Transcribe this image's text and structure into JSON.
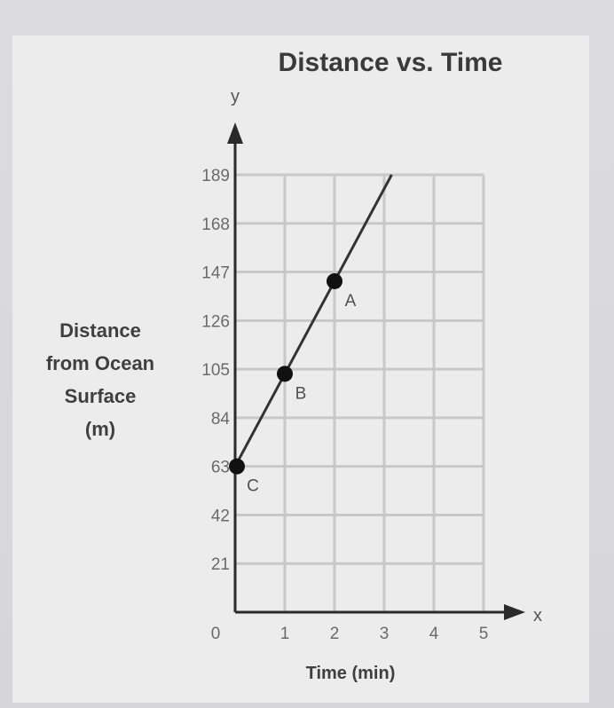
{
  "chart_data": {
    "type": "line",
    "title": "Distance vs. Time",
    "xlabel": "Time (min)",
    "ylabel_lines": [
      "Distance",
      "from Ocean",
      "Surface",
      "(m)"
    ],
    "x_axis_letter": "x",
    "y_axis_letter": "y",
    "x_ticks": [
      0,
      1,
      2,
      3,
      4,
      5
    ],
    "y_ticks": [
      21,
      42,
      63,
      84,
      105,
      126,
      147,
      168,
      189
    ],
    "origin_label": "0",
    "xlim": [
      0,
      5
    ],
    "ylim": [
      0,
      189
    ],
    "grid": true,
    "series": [
      {
        "x": [
          0,
          3.15
        ],
        "y": [
          63,
          189
        ]
      }
    ],
    "points": [
      {
        "label": "A",
        "x": 2,
        "y": 143
      },
      {
        "label": "B",
        "x": 1,
        "y": 103
      },
      {
        "label": "C",
        "x": 0,
        "y": 63
      }
    ],
    "colors": {
      "line": "#333333",
      "grid": "#c8c8c8",
      "axis": "#2a2a2a",
      "point": "#111111"
    }
  }
}
